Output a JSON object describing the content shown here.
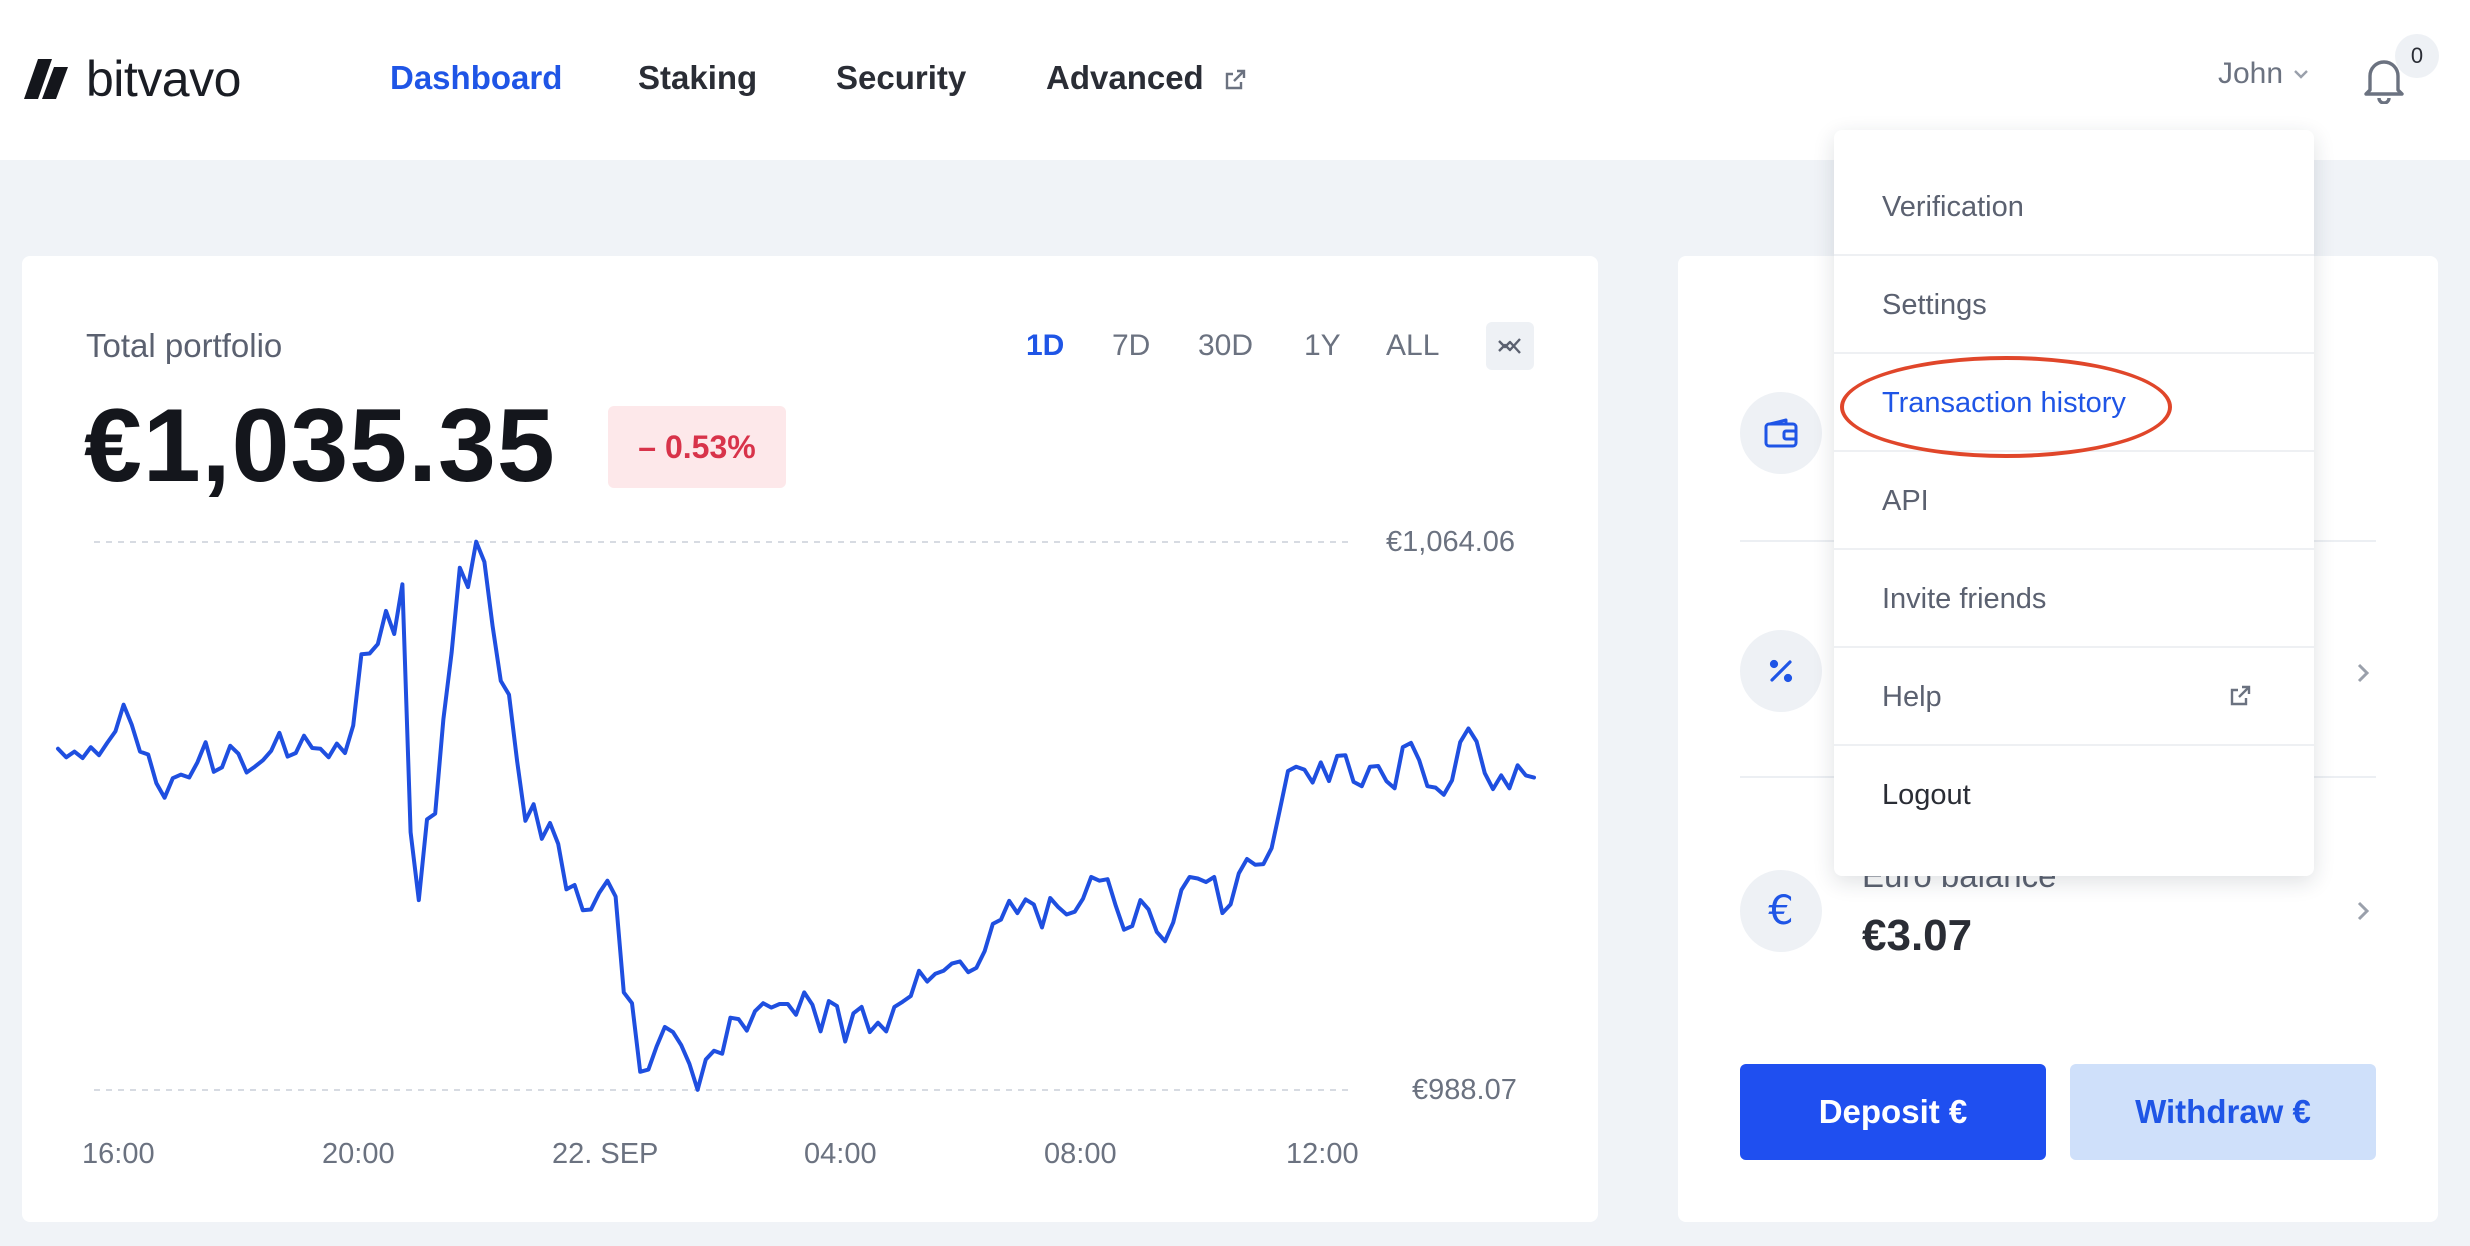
{
  "header": {
    "brand": "bitvavo",
    "nav": [
      {
        "label": "Dashboard",
        "active": true
      },
      {
        "label": "Staking",
        "active": false
      },
      {
        "label": "Security",
        "active": false
      },
      {
        "label": "Advanced",
        "active": false,
        "external": true
      }
    ],
    "user_name": "John",
    "notification_count": "0"
  },
  "portfolio": {
    "title": "Total portfolio",
    "value": "€1,035.35",
    "change": "– 0.53%",
    "range_options": [
      "1D",
      "7D",
      "30D",
      "1Y",
      "ALL"
    ],
    "active_range": "1D"
  },
  "chart_data": {
    "type": "line",
    "series": [
      {
        "values": [
          1035.4,
          1034.2,
          1035.0,
          1034.1,
          1035.6,
          1034.5,
          1036.2,
          1037.8,
          1041.5,
          1038.7,
          1035.0,
          1034.6,
          1030.6,
          1028.6,
          1031.3,
          1031.8,
          1031.4,
          1033.5,
          1036.3,
          1032.2,
          1032.8,
          1035.8,
          1034.7,
          1032.1,
          1032.9,
          1033.8,
          1035.1,
          1037.6,
          1034.3,
          1034.8,
          1037.2,
          1035.5,
          1035.4,
          1034.2,
          1036.1,
          1034.8,
          1038.6,
          1048.5,
          1048.6,
          1049.9,
          1054.5,
          1051.3,
          1058.2,
          1023.8,
          1014.4,
          1025.6,
          1026.4,
          1039.5,
          1048.7,
          1060.5,
          1057.8,
          1064.1,
          1061.3,
          1052.4,
          1044.8,
          1042.9,
          1033.6,
          1025.4,
          1027.7,
          1022.9,
          1025.1,
          1022.2,
          1015.9,
          1016.5,
          1013.0,
          1013.1,
          1015.4,
          1017.1,
          1014.9,
          1001.6,
          1000.1,
          990.6,
          990.9,
          994.1,
          996.8,
          996.1,
          994.3,
          991.7,
          988.1,
          992.3,
          993.5,
          993.1,
          998.1,
          997.9,
          996.3,
          999.0,
          1000.1,
          999.5,
          1000.0,
          1000.0,
          998.5,
          1001.6,
          999.9,
          996.2,
          1000.4,
          999.7,
          994.8,
          998.7,
          999.6,
          996.1,
          997.4,
          996.2,
          999.6,
          1000.3,
          1001.1,
          1004.6,
          1003.1,
          1004.2,
          1004.6,
          1005.6,
          1005.9,
          1004.4,
          1005.0,
          1007.3,
          1011.1,
          1011.7,
          1014.3,
          1012.6,
          1014.5,
          1013.8,
          1010.6,
          1014.7,
          1013.4,
          1012.4,
          1012.8,
          1014.6,
          1017.6,
          1017.1,
          1017.3,
          1013.6,
          1010.3,
          1010.8,
          1014.4,
          1013.1,
          1010.0,
          1008.7,
          1011.3,
          1015.8,
          1017.6,
          1017.4,
          1016.9,
          1017.6,
          1012.6,
          1013.8,
          1018.1,
          1020.1,
          1019.3,
          1019.4,
          1021.6,
          1026.9,
          1032.3,
          1032.9,
          1032.5,
          1030.7,
          1033.5,
          1030.9,
          1034.4,
          1034.5,
          1030.8,
          1030.2,
          1032.9,
          1033.0,
          1030.9,
          1029.9,
          1035.6,
          1036.2,
          1033.8,
          1030.2,
          1030.0,
          1029.0,
          1031.0,
          1036.3,
          1038.2,
          1036.4,
          1032.0,
          1029.8,
          1031.7,
          1029.9,
          1033.1,
          1031.7,
          1031.4
        ]
      }
    ],
    "x_tick_labels": [
      "16:00",
      "20:00",
      "22. SEP",
      "04:00",
      "08:00",
      "12:00"
    ],
    "y_tick_labels": [
      "€1,064.06",
      "€988.07"
    ],
    "ylim": [
      988.07,
      1064.06
    ],
    "grid": "dashed horizontal lines at min and max",
    "color": "#1f4fe0"
  },
  "dropdown": {
    "items": [
      {
        "label": "Verification",
        "active": false
      },
      {
        "label": "Settings",
        "active": false
      },
      {
        "label": "Transaction history",
        "active": true
      },
      {
        "label": "API",
        "active": false
      },
      {
        "label": "Invite friends",
        "active": false
      },
      {
        "label": "Help",
        "active": false,
        "external": true
      },
      {
        "label": "Logout",
        "active": false
      }
    ]
  },
  "sidebar_card": {
    "euro_balance_label": "Euro balance",
    "euro_balance_value": "€3.07",
    "deposit_label": "Deposit €",
    "withdraw_label": "Withdraw €"
  },
  "colors": {
    "accent": "#1f55e6",
    "negative": "#d8334a",
    "highlight_annotation": "#e0462a"
  }
}
